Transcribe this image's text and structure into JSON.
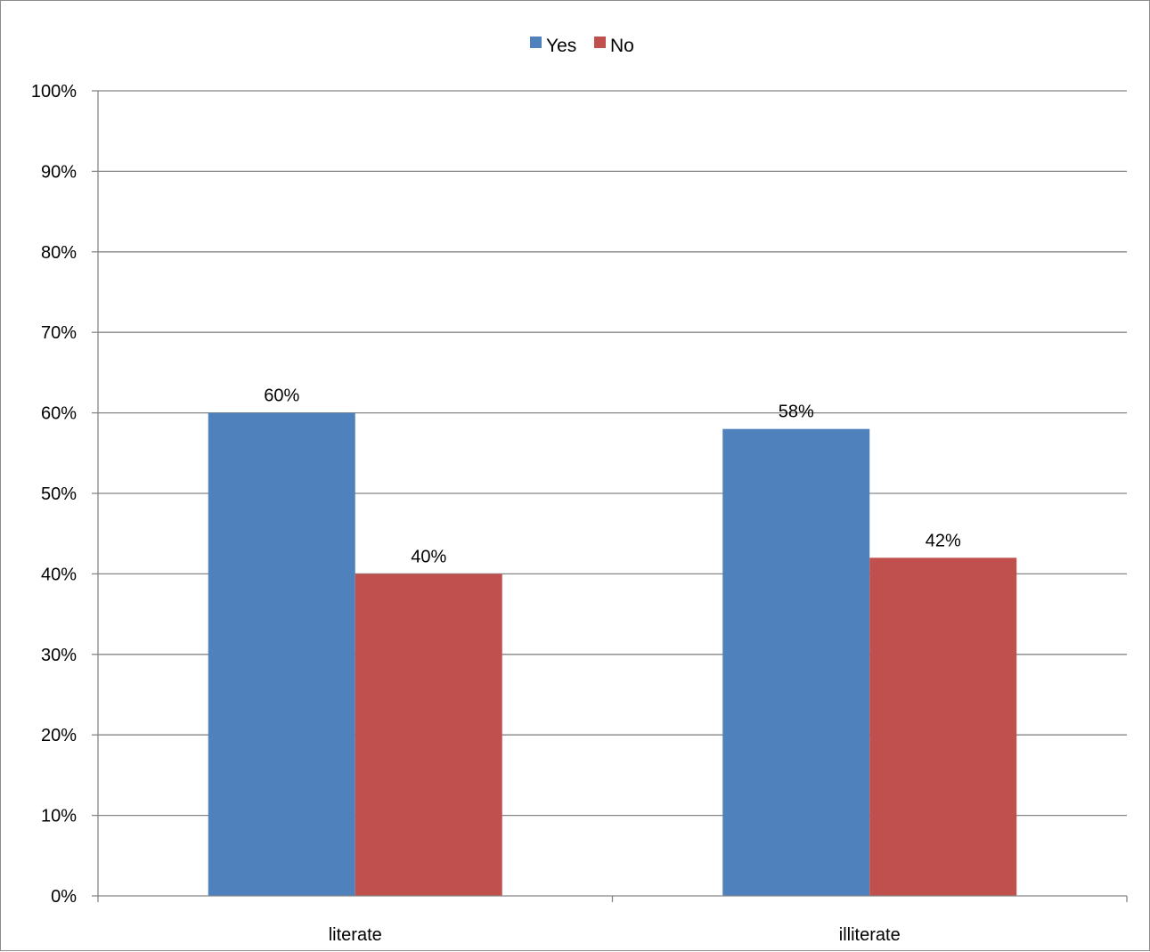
{
  "chart_data": {
    "type": "bar",
    "title": "",
    "xlabel": "",
    "ylabel": "",
    "categories": [
      "literate",
      "illiterate"
    ],
    "series": [
      {
        "name": "Yes",
        "values": [
          60,
          58
        ],
        "labels": [
          "60%",
          "58%"
        ],
        "color": "#4f81bd"
      },
      {
        "name": "No",
        "values": [
          40,
          42
        ],
        "labels": [
          "40%",
          "42%"
        ],
        "color": "#c0504d"
      }
    ],
    "ylim": [
      0,
      100
    ],
    "yticks": [
      0,
      10,
      20,
      30,
      40,
      50,
      60,
      70,
      80,
      90,
      100
    ],
    "ytick_labels": [
      "0%",
      "10%",
      "20%",
      "30%",
      "40%",
      "50%",
      "60%",
      "70%",
      "80%",
      "90%",
      "100%"
    ],
    "grid": true,
    "legend_position": "top",
    "gridline_color": "#868686",
    "axis_color": "#868686"
  }
}
